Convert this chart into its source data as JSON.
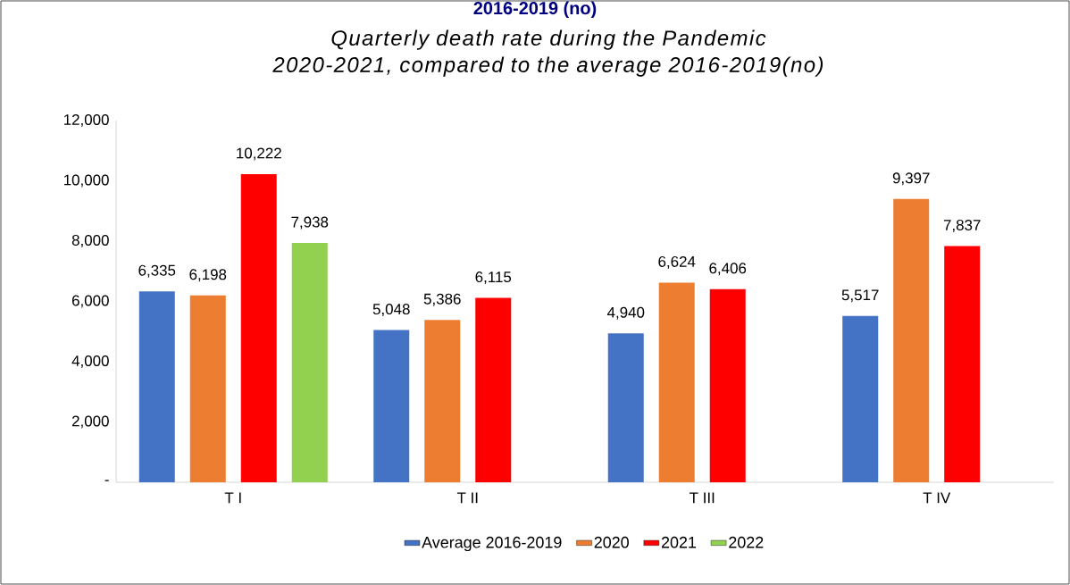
{
  "chart_data": {
    "type": "bar",
    "title": "Quarterly death rate during the Pandemic 2020-2021, compared to the average 2016-2019(no)",
    "annotations": [
      "2016-2019 (no)"
    ],
    "categories": [
      "T I",
      "T II",
      "T III",
      "T IV"
    ],
    "series": [
      {
        "name": "Average 2016-2019",
        "color": "#4472c4",
        "values": [
          6335,
          5048,
          4940,
          5517
        ],
        "value_labels": [
          "6,335",
          "5,048",
          "4,940",
          "5,517"
        ]
      },
      {
        "name": "2020",
        "color": "#ed7d31",
        "values": [
          6198,
          5386,
          6624,
          9397
        ],
        "value_labels": [
          "6,198",
          "5,386",
          "6,624",
          "9,397"
        ]
      },
      {
        "name": "2021",
        "color": "#ff0000",
        "values": [
          10222,
          6115,
          6406,
          7837
        ],
        "value_labels": [
          "10,222",
          "6,115",
          "6,406",
          "7,837"
        ]
      },
      {
        "name": "2022",
        "color": "#92d050",
        "values": [
          7938,
          null,
          null,
          null
        ],
        "value_labels": [
          "7,938",
          null,
          null,
          null
        ]
      }
    ],
    "ylim": [
      0,
      12000
    ],
    "yticks": [
      {
        "value": 0,
        "label": "-"
      },
      {
        "value": 2000,
        "label": "2,000"
      },
      {
        "value": 4000,
        "label": "4,000"
      },
      {
        "value": 6000,
        "label": "6,000"
      },
      {
        "value": 8000,
        "label": "8,000"
      },
      {
        "value": 10000,
        "label": "10,000"
      },
      {
        "value": 12000,
        "label": "12,000"
      }
    ],
    "grid": false,
    "legend": "bottom"
  }
}
